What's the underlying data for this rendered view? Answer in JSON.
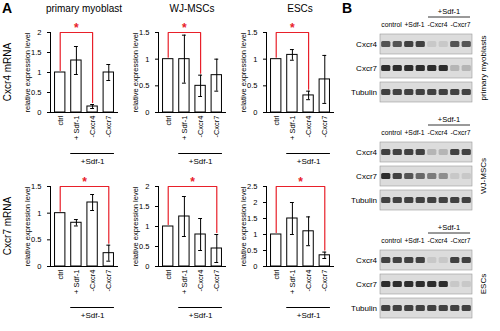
{
  "panel_labels": [
    "A",
    "B"
  ],
  "chart_data": [
    {
      "type": "bar",
      "title": "primary myoblast",
      "row_label": "Cxcr4 mRNA",
      "ylabel": "relative expression level",
      "categories": [
        "ctrl",
        "+ Sdf-1",
        "-Cxcr4",
        "-Cxcr7"
      ],
      "values": [
        1,
        1.3,
        0.15,
        1.0
      ],
      "errors": [
        0,
        0.35,
        0.05,
        0.2
      ],
      "color": "#ffffff",
      "ylim": [
        0,
        2
      ],
      "yticks": [
        0,
        0.5,
        1,
        1.5,
        2
      ],
      "group": {
        "label": "+Sdf-1",
        "from": "+ Sdf-1",
        "to": "-Cxcr7"
      },
      "significance": [
        {
          "from": "ctrl",
          "to": "-Cxcr4",
          "label": "*"
        }
      ]
    },
    {
      "type": "bar",
      "title": "WJ-MSCs",
      "ylabel": "relative expression level",
      "categories": [
        "ctrl",
        "+ Sdf-1",
        "-Cxcr4",
        "-Cxcr7"
      ],
      "values": [
        1,
        1.0,
        0.5,
        0.7
      ],
      "errors": [
        0,
        0.45,
        0.2,
        0.3
      ],
      "color": "#ffffff",
      "ylim": [
        0,
        1.5
      ],
      "yticks": [
        0,
        0.5,
        1,
        1.5
      ],
      "group": {
        "label": "+Sdf-1",
        "from": "+ Sdf-1",
        "to": "-Cxcr7"
      },
      "significance": [
        {
          "from": "ctrl",
          "to": "-Cxcr4",
          "label": "*"
        }
      ]
    },
    {
      "type": "bar",
      "title": "ESCs",
      "ylabel": "relative expression level",
      "categories": [
        "ctrl",
        "+ Sdf-1",
        "-Cxcr4",
        "-Cxcr7"
      ],
      "values": [
        1,
        1.08,
        0.32,
        0.62
      ],
      "errors": [
        0,
        0.1,
        0.08,
        0.45
      ],
      "color": "#ffffff",
      "ylim": [
        0,
        1.5
      ],
      "yticks": [
        0,
        0.5,
        1,
        1.5
      ],
      "group": {
        "label": "+Sdf-1",
        "from": "+ Sdf-1",
        "to": "-Cxcr7"
      },
      "significance": [
        {
          "from": "ctrl",
          "to": "-Cxcr4",
          "label": "*"
        }
      ]
    },
    {
      "type": "bar",
      "row_label": "Cxcr7 mRNA",
      "ylabel": "relative expression level",
      "categories": [
        "ctrl",
        "+ Sdf-1",
        "-Cxcr4",
        "-Cxcr7"
      ],
      "values": [
        1,
        0.82,
        1.2,
        0.25
      ],
      "errors": [
        0,
        0.06,
        0.15,
        0.15
      ],
      "color": "#ffffff",
      "ylim": [
        0,
        1.5
      ],
      "yticks": [
        0,
        0.5,
        1,
        1.5
      ],
      "group": {
        "label": "+Sdf-1",
        "from": "+ Sdf-1",
        "to": "-Cxcr7"
      },
      "significance": [
        {
          "from": "ctrl",
          "to": "-Cxcr7",
          "label": "*"
        }
      ]
    },
    {
      "type": "bar",
      "ylabel": "relative expression level",
      "categories": [
        "ctrl",
        "+ Sdf-1",
        "-Cxcr4",
        "-Cxcr7"
      ],
      "values": [
        1,
        1.25,
        0.8,
        0.45
      ],
      "errors": [
        0,
        0.5,
        0.4,
        0.35
      ],
      "color": "#ffffff",
      "ylim": [
        0,
        2
      ],
      "yticks": [
        0,
        0.5,
        1,
        1.5,
        2
      ],
      "group": {
        "label": "+Sdf-1",
        "from": "+ Sdf-1",
        "to": "-Cxcr7"
      },
      "significance": [
        {
          "from": "ctrl",
          "to": "-Cxcr7",
          "label": "*"
        }
      ]
    },
    {
      "type": "bar",
      "ylabel": "relative expression level",
      "categories": [
        "ctrl",
        "+ Sdf-1",
        "-Cxcr4",
        "-Cxcr7"
      ],
      "values": [
        1,
        1.5,
        1.1,
        0.35
      ],
      "errors": [
        0,
        0.5,
        0.45,
        0.1
      ],
      "color": "#ffffff",
      "ylim": [
        0,
        2.5
      ],
      "yticks": [
        0,
        0.5,
        1,
        1.5,
        2,
        2.5
      ],
      "group": {
        "label": "+Sdf-1",
        "from": "+ Sdf-1",
        "to": "-Cxcr7"
      },
      "significance": [
        {
          "from": "ctrl",
          "to": "-Cxcr7",
          "label": "*"
        }
      ]
    }
  ],
  "blots": {
    "conditions": [
      "control",
      "+Sdf-1",
      "-Cxcr4",
      "-Cxcr7"
    ],
    "group": {
      "label": "+Sdf-1",
      "from": "-Cxcr4",
      "to": "-Cxcr7"
    },
    "panels": [
      {
        "name": "primary myoblasts",
        "rows": [
          {
            "label": "Cxcr4",
            "bands": [
              0.7,
              0.7,
              0.8,
              0.8,
              0.1,
              0.1,
              0.7,
              0.7
            ]
          },
          {
            "label": "Cxcr7",
            "bands": [
              0.9,
              0.9,
              0.9,
              0.9,
              0.9,
              0.9,
              0.2,
              0.2
            ]
          },
          {
            "label": "Tubulin",
            "bands": [
              0.8,
              0.8,
              0.8,
              0.8,
              0.8,
              0.8,
              0.8,
              0.8
            ]
          }
        ]
      },
      {
        "name": "WJ-MSCs",
        "rows": [
          {
            "label": "Cxcr4",
            "bands": [
              0.8,
              0.8,
              0.8,
              0.8,
              0.2,
              0.2,
              0.8,
              0.8
            ]
          },
          {
            "label": "Cxcr7",
            "bands": [
              0.9,
              0.8,
              0.7,
              0.6,
              0.5,
              0.4,
              0.1,
              0.1
            ]
          },
          {
            "label": "Tubulin",
            "bands": [
              0.8,
              0.8,
              0.8,
              0.8,
              0.8,
              0.8,
              0.8,
              0.8
            ]
          }
        ]
      },
      {
        "name": "ESCs",
        "rows": [
          {
            "label": "Cxcr4",
            "bands": [
              0.8,
              0.8,
              0.8,
              0.8,
              0.1,
              0.1,
              0.8,
              0.8
            ]
          },
          {
            "label": "Cxcr7",
            "bands": [
              0.9,
              0.9,
              0.9,
              0.9,
              0.9,
              0.9,
              0.1,
              0.1
            ]
          },
          {
            "label": "Tubulin",
            "bands": [
              0.8,
              0.8,
              0.8,
              0.8,
              0.8,
              0.8,
              0.8,
              0.8
            ]
          }
        ]
      }
    ]
  }
}
